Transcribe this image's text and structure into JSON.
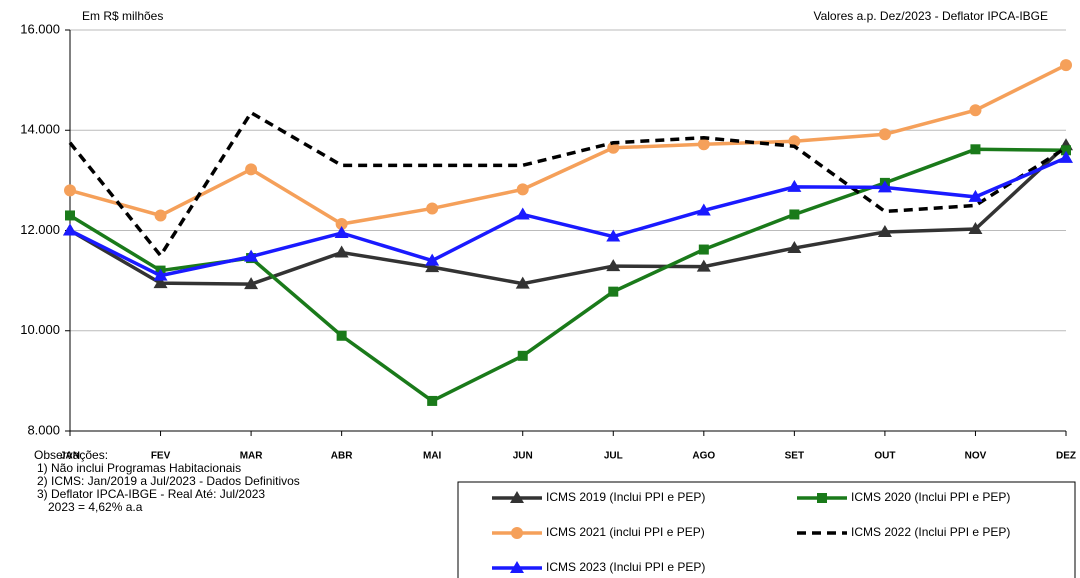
{
  "chart_data": {
    "type": "line",
    "unit_label": "Em R$ milhões",
    "source_label": "Valores a.p. Dez/2023 - Deflator IPCA-IBGE",
    "categories": [
      "JAN",
      "FEV",
      "MAR",
      "ABR",
      "MAI",
      "JUN",
      "JUL",
      "AGO",
      "SET",
      "OUT",
      "NOV",
      "DEZ"
    ],
    "ylim": [
      8000,
      16000
    ],
    "yticks": [
      {
        "value": 8000,
        "label": "8.000"
      },
      {
        "value": 10000,
        "label": "10.000"
      },
      {
        "value": 12000,
        "label": "12.000"
      },
      {
        "value": 14000,
        "label": "14.000"
      },
      {
        "value": 16000,
        "label": "16.000"
      }
    ],
    "grid": true,
    "series": [
      {
        "name": "ICMS 2019 (Inclui PPI e PEP)",
        "color": "#333333",
        "marker": "triangle",
        "dashed": false,
        "values": [
          12000,
          10950,
          10930,
          11560,
          11270,
          10940,
          11290,
          11280,
          11650,
          11970,
          12030,
          13700
        ]
      },
      {
        "name": "ICMS 2020 (Inclui PPI e PEP)",
        "color": "#1a7a1a",
        "marker": "square",
        "dashed": false,
        "values": [
          12300,
          11200,
          11450,
          9900,
          8600,
          9500,
          10780,
          11620,
          12320,
          12950,
          13620,
          13600
        ]
      },
      {
        "name": "ICMS 2021 (inclui PPI e PEP)",
        "color": "#f5a05a",
        "marker": "circle",
        "dashed": false,
        "values": [
          12800,
          12300,
          13220,
          12130,
          12440,
          12820,
          13650,
          13720,
          13780,
          13920,
          14400,
          15300
        ]
      },
      {
        "name": "ICMS 2022 (Inclui PPI e PEP)",
        "color": "#000000",
        "marker": "none",
        "dashed": true,
        "values": [
          13750,
          11500,
          14350,
          13300,
          13300,
          13300,
          13750,
          13850,
          13680,
          12380,
          12500,
          13650
        ]
      },
      {
        "name": "ICMS 2023 (Inclui PPI e PEP)",
        "color": "#1a1aff",
        "marker": "triangle",
        "dashed": false,
        "values": [
          12000,
          11100,
          11480,
          11950,
          11400,
          12320,
          11880,
          12400,
          12870,
          12860,
          12670,
          13450
        ]
      }
    ],
    "notes": [
      "Observações:",
      "1) Não inclui Programas Habitacionais",
      "2) ICMS: Jan/2019 a Jul/2023 - Dados Definitivos",
      "3) Deflator IPCA-IBGE - Real Até: Jul/2023",
      "2023 = 4,62% a.a"
    ]
  }
}
